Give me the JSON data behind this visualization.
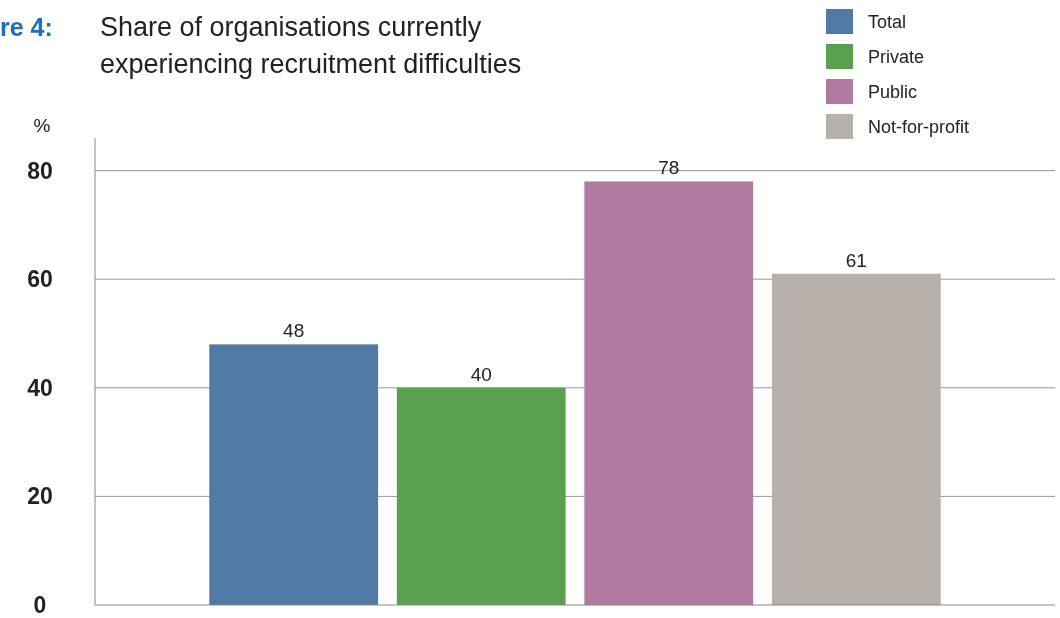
{
  "chart_data": {
    "type": "bar",
    "title": "Share of organisations currently\nexperiencing recruitment difficulties",
    "ylabel": "%",
    "annotations": [
      "re 4:"
    ],
    "categories": [
      null
    ],
    "series": [
      {
        "name": "Total",
        "color": "#5079a5",
        "values": [
          48
        ]
      },
      {
        "name": "Private",
        "color": "#59a14f",
        "values": [
          40
        ]
      },
      {
        "name": "Public",
        "color": "#b07aa1",
        "values": [
          78
        ]
      },
      {
        "name": "Not-for-profit",
        "color": "#b8b0ab",
        "values": [
          61
        ]
      }
    ],
    "ylim": [
      0,
      86
    ],
    "yticks": [
      0,
      20,
      40,
      60,
      80
    ],
    "grid": "y",
    "legend": "top right",
    "data_labels": true
  }
}
